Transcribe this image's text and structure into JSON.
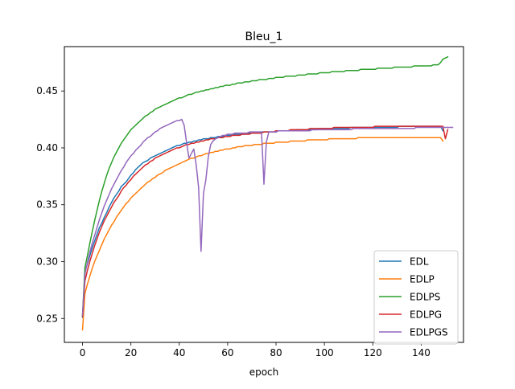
{
  "chart_data": {
    "type": "line",
    "title": "Bleu_1",
    "xlabel": "epoch",
    "ylabel": "",
    "xlim": [
      -7.5,
      157.5
    ],
    "ylim": [
      0.229,
      0.489
    ],
    "xticks": [
      0,
      20,
      40,
      60,
      80,
      100,
      120,
      140
    ],
    "yticks": [
      0.25,
      0.3,
      0.35,
      0.4,
      0.45
    ],
    "ytick_labels": [
      "0.25",
      "0.30",
      "0.35",
      "0.40",
      "0.45"
    ],
    "grid": false,
    "legend_position": "lower-right",
    "x": "epochs 0-149 (1 per epoch)",
    "series": [
      {
        "name": "EDL",
        "color": "#1f77b4",
        "values": [
          0.251,
          0.291,
          0.298,
          0.305,
          0.312,
          0.318,
          0.324,
          0.33,
          0.334,
          0.339,
          0.343,
          0.348,
          0.352,
          0.356,
          0.359,
          0.362,
          0.366,
          0.368,
          0.37,
          0.373,
          0.376,
          0.378,
          0.381,
          0.383,
          0.385,
          0.387,
          0.388,
          0.389,
          0.391,
          0.392,
          0.393,
          0.394,
          0.395,
          0.396,
          0.397,
          0.398,
          0.399,
          0.4,
          0.401,
          0.402,
          0.402,
          0.403,
          0.404,
          0.404,
          0.405,
          0.405,
          0.406,
          0.406,
          0.407,
          0.407,
          0.408,
          0.408,
          0.408,
          0.409,
          0.409,
          0.409,
          0.41,
          0.41,
          0.41,
          0.411,
          0.411,
          0.411,
          0.411,
          0.412,
          0.412,
          0.412,
          0.412,
          0.412,
          0.413,
          0.413,
          0.413,
          0.413,
          0.413,
          0.413,
          0.414,
          0.414,
          0.414,
          0.414,
          0.414,
          0.414,
          0.414,
          0.415,
          0.415,
          0.415,
          0.415,
          0.415,
          0.415,
          0.415,
          0.416,
          0.416,
          0.416,
          0.416,
          0.416,
          0.416,
          0.416,
          0.416,
          0.416,
          0.416,
          0.417,
          0.417,
          0.417,
          0.417,
          0.417,
          0.417,
          0.417,
          0.417,
          0.417,
          0.417,
          0.417,
          0.417,
          0.417,
          0.418,
          0.418,
          0.418,
          0.418,
          0.418,
          0.418,
          0.418,
          0.418,
          0.418,
          0.418,
          0.418,
          0.418,
          0.418,
          0.418,
          0.418,
          0.418,
          0.418,
          0.418,
          0.418,
          0.418,
          0.419,
          0.419,
          0.419,
          0.419,
          0.419,
          0.419,
          0.419,
          0.419,
          0.419,
          0.419,
          0.419,
          0.419,
          0.419,
          0.419,
          0.419,
          0.419,
          0.419,
          0.419,
          0.415
        ]
      },
      {
        "name": "EDLP",
        "color": "#ff7f0e",
        "values": [
          0.24,
          0.272,
          0.28,
          0.287,
          0.294,
          0.3,
          0.305,
          0.31,
          0.315,
          0.32,
          0.324,
          0.328,
          0.332,
          0.335,
          0.339,
          0.342,
          0.345,
          0.348,
          0.351,
          0.353,
          0.356,
          0.358,
          0.36,
          0.362,
          0.364,
          0.366,
          0.368,
          0.37,
          0.371,
          0.373,
          0.374,
          0.376,
          0.377,
          0.378,
          0.38,
          0.381,
          0.382,
          0.383,
          0.384,
          0.385,
          0.386,
          0.387,
          0.388,
          0.389,
          0.39,
          0.391,
          0.391,
          0.392,
          0.393,
          0.393,
          0.394,
          0.395,
          0.395,
          0.396,
          0.396,
          0.397,
          0.397,
          0.398,
          0.398,
          0.399,
          0.399,
          0.399,
          0.4,
          0.4,
          0.401,
          0.401,
          0.401,
          0.402,
          0.402,
          0.402,
          0.402,
          0.403,
          0.403,
          0.403,
          0.403,
          0.404,
          0.404,
          0.404,
          0.404,
          0.404,
          0.405,
          0.405,
          0.405,
          0.405,
          0.405,
          0.405,
          0.406,
          0.406,
          0.406,
          0.406,
          0.406,
          0.406,
          0.406,
          0.407,
          0.407,
          0.407,
          0.407,
          0.407,
          0.407,
          0.407,
          0.407,
          0.407,
          0.408,
          0.408,
          0.408,
          0.408,
          0.408,
          0.408,
          0.408,
          0.408,
          0.408,
          0.408,
          0.408,
          0.408,
          0.409,
          0.409,
          0.409,
          0.409,
          0.409,
          0.409,
          0.409,
          0.409,
          0.409,
          0.409,
          0.409,
          0.409,
          0.409,
          0.409,
          0.409,
          0.409,
          0.409,
          0.409,
          0.409,
          0.409,
          0.409,
          0.409,
          0.409,
          0.409,
          0.409,
          0.409,
          0.409,
          0.409,
          0.409,
          0.409,
          0.409,
          0.409,
          0.409,
          0.409,
          0.409,
          0.406
        ]
      },
      {
        "name": "EDLPS",
        "color": "#2ca02c",
        "values": [
          0.253,
          0.295,
          0.305,
          0.316,
          0.326,
          0.336,
          0.345,
          0.354,
          0.362,
          0.369,
          0.376,
          0.382,
          0.387,
          0.392,
          0.396,
          0.4,
          0.404,
          0.407,
          0.41,
          0.413,
          0.416,
          0.418,
          0.42,
          0.422,
          0.424,
          0.426,
          0.428,
          0.429,
          0.431,
          0.432,
          0.434,
          0.435,
          0.436,
          0.437,
          0.438,
          0.439,
          0.44,
          0.441,
          0.442,
          0.443,
          0.444,
          0.444,
          0.445,
          0.446,
          0.447,
          0.447,
          0.448,
          0.449,
          0.449,
          0.45,
          0.45,
          0.451,
          0.451,
          0.452,
          0.452,
          0.453,
          0.453,
          0.454,
          0.454,
          0.455,
          0.455,
          0.455,
          0.456,
          0.456,
          0.457,
          0.457,
          0.457,
          0.458,
          0.458,
          0.458,
          0.459,
          0.459,
          0.459,
          0.46,
          0.46,
          0.46,
          0.46,
          0.461,
          0.461,
          0.461,
          0.462,
          0.462,
          0.462,
          0.462,
          0.463,
          0.463,
          0.463,
          0.463,
          0.463,
          0.464,
          0.464,
          0.464,
          0.464,
          0.465,
          0.465,
          0.465,
          0.465,
          0.465,
          0.466,
          0.466,
          0.466,
          0.466,
          0.466,
          0.467,
          0.467,
          0.467,
          0.467,
          0.467,
          0.467,
          0.468,
          0.468,
          0.468,
          0.468,
          0.468,
          0.468,
          0.469,
          0.469,
          0.469,
          0.469,
          0.469,
          0.469,
          0.469,
          0.47,
          0.47,
          0.47,
          0.47,
          0.47,
          0.47,
          0.47,
          0.471,
          0.471,
          0.471,
          0.471,
          0.471,
          0.471,
          0.471,
          0.471,
          0.472,
          0.472,
          0.472,
          0.472,
          0.472,
          0.472,
          0.472,
          0.472,
          0.473,
          0.473,
          0.473,
          0.475,
          0.478,
          0.479,
          0.48
        ]
      },
      {
        "name": "EDLPG",
        "color": "#d62728",
        "values": [
          0.252,
          0.283,
          0.292,
          0.3,
          0.307,
          0.314,
          0.32,
          0.326,
          0.331,
          0.336,
          0.34,
          0.344,
          0.348,
          0.352,
          0.355,
          0.358,
          0.362,
          0.365,
          0.367,
          0.37,
          0.372,
          0.375,
          0.377,
          0.379,
          0.381,
          0.383,
          0.385,
          0.386,
          0.388,
          0.389,
          0.391,
          0.392,
          0.393,
          0.394,
          0.395,
          0.396,
          0.397,
          0.398,
          0.399,
          0.4,
          0.4,
          0.401,
          0.402,
          0.403,
          0.403,
          0.404,
          0.404,
          0.405,
          0.405,
          0.406,
          0.406,
          0.407,
          0.407,
          0.408,
          0.408,
          0.408,
          0.409,
          0.409,
          0.409,
          0.41,
          0.41,
          0.41,
          0.411,
          0.411,
          0.411,
          0.411,
          0.412,
          0.412,
          0.412,
          0.412,
          0.413,
          0.413,
          0.413,
          0.413,
          0.413,
          0.414,
          0.414,
          0.414,
          0.414,
          0.414,
          0.415,
          0.415,
          0.415,
          0.415,
          0.415,
          0.415,
          0.416,
          0.416,
          0.416,
          0.416,
          0.416,
          0.416,
          0.416,
          0.416,
          0.417,
          0.417,
          0.417,
          0.417,
          0.417,
          0.417,
          0.417,
          0.417,
          0.417,
          0.417,
          0.418,
          0.418,
          0.418,
          0.418,
          0.418,
          0.418,
          0.418,
          0.418,
          0.418,
          0.418,
          0.418,
          0.418,
          0.418,
          0.418,
          0.418,
          0.418,
          0.418,
          0.419,
          0.419,
          0.419,
          0.419,
          0.419,
          0.419,
          0.419,
          0.419,
          0.419,
          0.419,
          0.419,
          0.419,
          0.419,
          0.419,
          0.419,
          0.419,
          0.419,
          0.419,
          0.419,
          0.419,
          0.419,
          0.419,
          0.419,
          0.419,
          0.419,
          0.419,
          0.419,
          0.419,
          0.419,
          0.408,
          0.416
        ]
      },
      {
        "name": "EDLPGS",
        "color": "#9467bd",
        "values": [
          0.253,
          0.289,
          0.299,
          0.308,
          0.316,
          0.323,
          0.33,
          0.337,
          0.343,
          0.349,
          0.354,
          0.359,
          0.364,
          0.368,
          0.372,
          0.376,
          0.38,
          0.383,
          0.387,
          0.39,
          0.393,
          0.395,
          0.398,
          0.4,
          0.402,
          0.405,
          0.407,
          0.409,
          0.41,
          0.412,
          0.414,
          0.415,
          0.417,
          0.418,
          0.419,
          0.42,
          0.421,
          0.422,
          0.423,
          0.424,
          0.424,
          0.425,
          0.42,
          0.405,
          0.391,
          0.395,
          0.399,
          0.385,
          0.365,
          0.309,
          0.36,
          0.372,
          0.392,
          0.403,
          0.406,
          0.408,
          0.409,
          0.41,
          0.411,
          0.411,
          0.412,
          0.412,
          0.412,
          0.413,
          0.413,
          0.413,
          0.413,
          0.413,
          0.413,
          0.414,
          0.414,
          0.414,
          0.414,
          0.414,
          0.414,
          0.368,
          0.405,
          0.414,
          0.414,
          0.414,
          0.414,
          0.415,
          0.415,
          0.415,
          0.415,
          0.415,
          0.415,
          0.415,
          0.415,
          0.415,
          0.415,
          0.415,
          0.415,
          0.415,
          0.415,
          0.416,
          0.416,
          0.416,
          0.416,
          0.416,
          0.416,
          0.416,
          0.416,
          0.416,
          0.416,
          0.416,
          0.416,
          0.416,
          0.416,
          0.416,
          0.416,
          0.416,
          0.417,
          0.417,
          0.417,
          0.417,
          0.417,
          0.417,
          0.417,
          0.417,
          0.417,
          0.417,
          0.417,
          0.417,
          0.417,
          0.417,
          0.417,
          0.417,
          0.417,
          0.417,
          0.417,
          0.417,
          0.417,
          0.417,
          0.417,
          0.417,
          0.417,
          0.417,
          0.418,
          0.418,
          0.418,
          0.418,
          0.418,
          0.418,
          0.418,
          0.418,
          0.418,
          0.418,
          0.418,
          0.418,
          0.418,
          0.418,
          0.418,
          0.418
        ]
      }
    ]
  }
}
